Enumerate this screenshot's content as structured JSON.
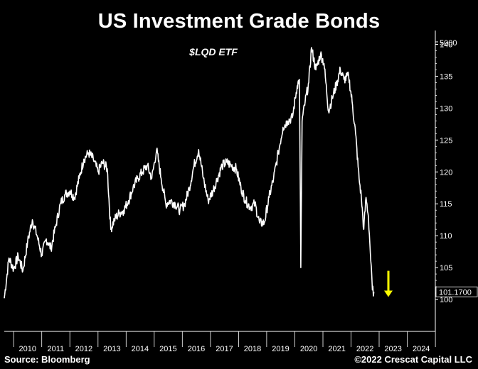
{
  "title": "US Investment Grade Bonds",
  "subtitle": "$LQD ETF",
  "source": "Source: Bloomberg",
  "copyright": "©2022 Crescat Capital LLC",
  "colors": {
    "background": "#000000",
    "line": "#ffffff",
    "arrow": "#ffff00"
  },
  "chart_data": {
    "type": "line",
    "title": "US Investment Grade Bonds",
    "subtitle": "$LQD ETF",
    "x_axis": {
      "type": "date",
      "range": [
        "2009-09-01",
        "2024-12-31"
      ],
      "tick_labels": [
        "2010",
        "2011",
        "2012",
        "2013",
        "2014",
        "2015",
        "2016",
        "2017",
        "2018",
        "2019",
        "2020",
        "2021",
        "2022",
        "2023",
        "2024"
      ]
    },
    "y_axis": {
      "position": "right",
      "range": [
        95,
        140.5
      ],
      "tick_labels": [
        "100",
        "105",
        "110",
        "115",
        "120",
        "125",
        "130",
        "135",
        "140"
      ],
      "tick_values": [
        100,
        105,
        110,
        115,
        120,
        125,
        130,
        135,
        140
      ],
      "extra_label": "5000"
    },
    "grid": false,
    "last_value_label": "101.1700",
    "annotation": {
      "type": "down-arrow",
      "date": "2023-05-01",
      "from": 104.5,
      "to": 100.4
    },
    "series": [
      {
        "values": [
          {
            "x": "2009-09-01",
            "y": 100.2
          },
          {
            "x": "2009-11-01",
            "y": 106.5
          },
          {
            "x": "2010-01-01",
            "y": 104.8
          },
          {
            "x": "2010-03-01",
            "y": 106.8
          },
          {
            "x": "2010-05-01",
            "y": 104.5
          },
          {
            "x": "2010-07-01",
            "y": 109.0
          },
          {
            "x": "2010-09-01",
            "y": 112.5
          },
          {
            "x": "2010-11-01",
            "y": 110.0
          },
          {
            "x": "2011-01-01",
            "y": 107.0
          },
          {
            "x": "2011-03-01",
            "y": 109.5
          },
          {
            "x": "2011-05-01",
            "y": 108.0
          },
          {
            "x": "2011-07-01",
            "y": 111.5
          },
          {
            "x": "2011-09-01",
            "y": 115.0
          },
          {
            "x": "2011-11-01",
            "y": 116.5
          },
          {
            "x": "2012-01-01",
            "y": 117.0
          },
          {
            "x": "2012-03-01",
            "y": 116.0
          },
          {
            "x": "2012-05-01",
            "y": 119.0
          },
          {
            "x": "2012-07-01",
            "y": 122.0
          },
          {
            "x": "2012-09-01",
            "y": 123.0
          },
          {
            "x": "2012-11-01",
            "y": 122.0
          },
          {
            "x": "2013-01-01",
            "y": 120.0
          },
          {
            "x": "2013-03-01",
            "y": 121.5
          },
          {
            "x": "2013-05-01",
            "y": 120.5
          },
          {
            "x": "2013-06-15",
            "y": 111.0
          },
          {
            "x": "2013-08-01",
            "y": 112.5
          },
          {
            "x": "2013-10-01",
            "y": 113.5
          },
          {
            "x": "2013-12-01",
            "y": 114.0
          },
          {
            "x": "2014-02-01",
            "y": 115.5
          },
          {
            "x": "2014-04-01",
            "y": 117.5
          },
          {
            "x": "2014-06-01",
            "y": 119.0
          },
          {
            "x": "2014-08-01",
            "y": 120.0
          },
          {
            "x": "2014-10-01",
            "y": 121.0
          },
          {
            "x": "2014-12-01",
            "y": 119.0
          },
          {
            "x": "2015-02-01",
            "y": 123.5
          },
          {
            "x": "2015-04-01",
            "y": 119.0
          },
          {
            "x": "2015-06-01",
            "y": 115.0
          },
          {
            "x": "2015-08-01",
            "y": 115.5
          },
          {
            "x": "2015-10-01",
            "y": 115.0
          },
          {
            "x": "2015-12-01",
            "y": 114.0
          },
          {
            "x": "2016-02-01",
            "y": 115.0
          },
          {
            "x": "2016-04-01",
            "y": 117.5
          },
          {
            "x": "2016-06-01",
            "y": 121.0
          },
          {
            "x": "2016-08-01",
            "y": 123.5
          },
          {
            "x": "2016-10-01",
            "y": 119.0
          },
          {
            "x": "2016-12-01",
            "y": 115.5
          },
          {
            "x": "2017-02-01",
            "y": 117.0
          },
          {
            "x": "2017-04-01",
            "y": 119.0
          },
          {
            "x": "2017-06-01",
            "y": 121.0
          },
          {
            "x": "2017-08-01",
            "y": 121.5
          },
          {
            "x": "2017-10-01",
            "y": 121.0
          },
          {
            "x": "2017-12-01",
            "y": 120.5
          },
          {
            "x": "2018-02-01",
            "y": 117.5
          },
          {
            "x": "2018-04-01",
            "y": 115.5
          },
          {
            "x": "2018-06-01",
            "y": 114.5
          },
          {
            "x": "2018-08-01",
            "y": 115.0
          },
          {
            "x": "2018-10-01",
            "y": 112.0
          },
          {
            "x": "2018-12-01",
            "y": 112.0
          },
          {
            "x": "2019-02-01",
            "y": 116.0
          },
          {
            "x": "2019-04-01",
            "y": 119.0
          },
          {
            "x": "2019-06-01",
            "y": 123.0
          },
          {
            "x": "2019-08-01",
            "y": 127.0
          },
          {
            "x": "2019-10-01",
            "y": 128.0
          },
          {
            "x": "2019-12-01",
            "y": 128.5
          },
          {
            "x": "2020-02-01",
            "y": 133.5
          },
          {
            "x": "2020-03-01",
            "y": 134.5
          },
          {
            "x": "2020-03-20",
            "y": 105.0
          },
          {
            "x": "2020-04-05",
            "y": 128.0
          },
          {
            "x": "2020-05-15",
            "y": 131.0
          },
          {
            "x": "2020-07-01",
            "y": 134.0
          },
          {
            "x": "2020-08-05",
            "y": 139.5
          },
          {
            "x": "2020-10-01",
            "y": 136.0
          },
          {
            "x": "2020-12-01",
            "y": 138.5
          },
          {
            "x": "2021-01-15",
            "y": 137.0
          },
          {
            "x": "2021-03-15",
            "y": 129.5
          },
          {
            "x": "2021-05-01",
            "y": 131.5
          },
          {
            "x": "2021-07-01",
            "y": 134.0
          },
          {
            "x": "2021-08-15",
            "y": 136.0
          },
          {
            "x": "2021-10-01",
            "y": 134.5
          },
          {
            "x": "2021-12-01",
            "y": 135.0
          },
          {
            "x": "2022-01-15",
            "y": 131.0
          },
          {
            "x": "2022-03-01",
            "y": 126.0
          },
          {
            "x": "2022-04-15",
            "y": 119.0
          },
          {
            "x": "2022-05-15",
            "y": 116.0
          },
          {
            "x": "2022-06-15",
            "y": 111.0
          },
          {
            "x": "2022-07-15",
            "y": 116.0
          },
          {
            "x": "2022-08-15",
            "y": 113.0
          },
          {
            "x": "2022-09-15",
            "y": 106.0
          },
          {
            "x": "2022-10-05",
            "y": 101.5
          },
          {
            "x": "2022-10-25",
            "y": 101.2
          }
        ]
      }
    ]
  }
}
